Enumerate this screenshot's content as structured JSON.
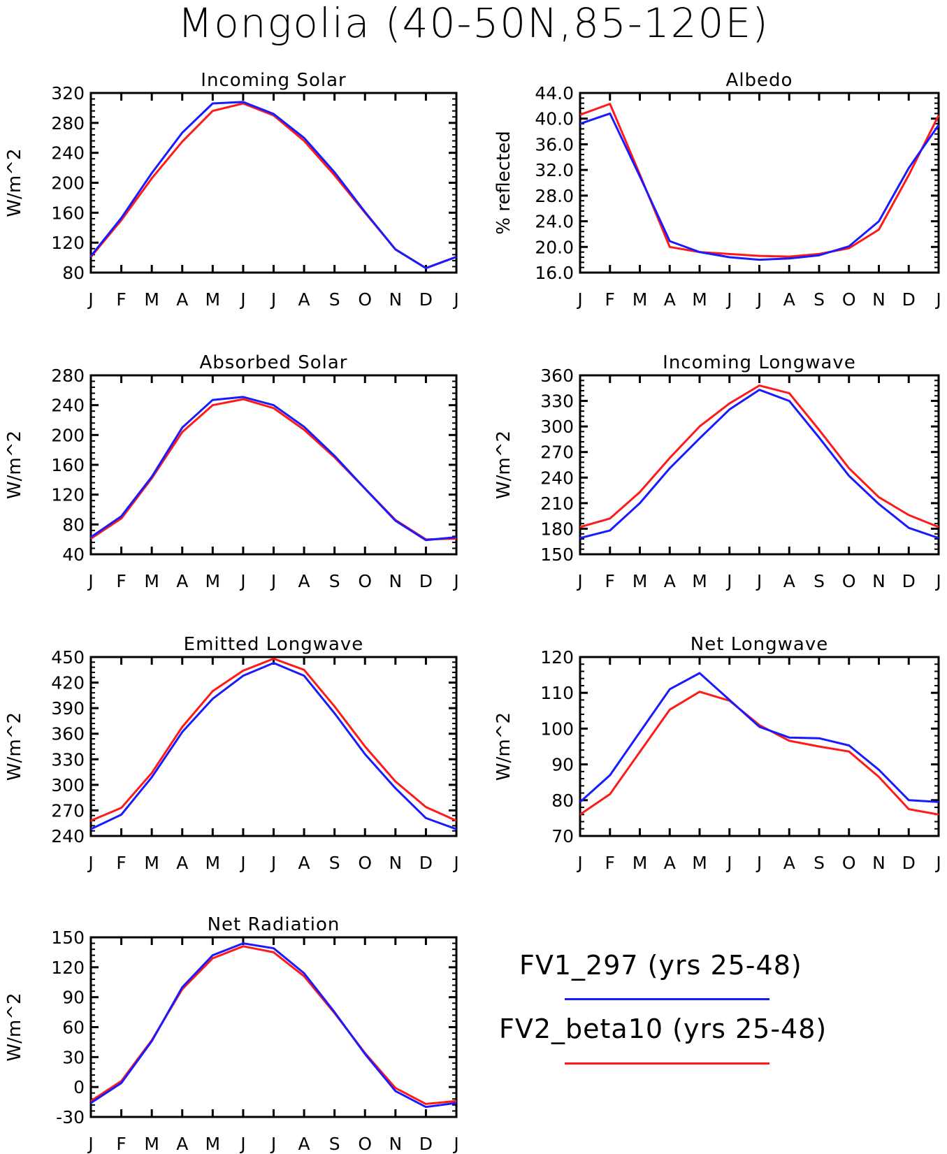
{
  "figure": {
    "title": "Mongolia (40-50N,85-120E)"
  },
  "legend": [
    {
      "name": "FV1_297 (yrs 25-48)",
      "color": "#1a1aff"
    },
    {
      "name": "FV2_beta10 (yrs 25-48)",
      "color": "#ff1a1a"
    }
  ],
  "chart_data": [
    {
      "type": "line",
      "title": "Incoming Solar",
      "ylabel": "W/m^2",
      "categories": [
        "J",
        "F",
        "M",
        "A",
        "M",
        "J",
        "J",
        "A",
        "S",
        "O",
        "N",
        "D",
        "J"
      ],
      "ylim": [
        80,
        320
      ],
      "yticks": [
        "80",
        "120",
        "160",
        "200",
        "240",
        "280",
        "320"
      ],
      "series": [
        {
          "name": "FV1_297 (yrs 25-48)",
          "color": "#1a1aff",
          "values": [
            102,
            153,
            213,
            267,
            306,
            308,
            292,
            260,
            214,
            161,
            111,
            86,
            101
          ]
        },
        {
          "name": "FV2_beta10 (yrs 25-48)",
          "color": "#ff1a1a",
          "values": [
            101,
            150,
            206,
            255,
            296,
            306,
            290,
            256,
            210,
            160,
            111,
            86,
            101
          ]
        }
      ]
    },
    {
      "type": "line",
      "title": "Albedo",
      "ylabel": "% reflected",
      "categories": [
        "J",
        "F",
        "M",
        "A",
        "M",
        "J",
        "J",
        "A",
        "S",
        "O",
        "N",
        "D",
        "J"
      ],
      "ylim": [
        16,
        44
      ],
      "yticks": [
        "16.0",
        "20.0",
        "24.0",
        "28.0",
        "32.0",
        "36.0",
        "40.0",
        "44.0"
      ],
      "series": [
        {
          "name": "FV1_297 (yrs 25-48)",
          "color": "#1a1aff",
          "values": [
            39.2,
            40.8,
            31.0,
            20.9,
            19.2,
            18.4,
            18.0,
            18.2,
            18.7,
            20.1,
            24.0,
            32.3,
            39.0
          ]
        },
        {
          "name": "FV2_beta10 (yrs 25-48)",
          "color": "#ff1a1a",
          "values": [
            40.6,
            42.3,
            31.3,
            20.0,
            19.2,
            18.9,
            18.6,
            18.5,
            18.9,
            19.8,
            22.7,
            31.2,
            40.5
          ]
        }
      ]
    },
    {
      "type": "line",
      "title": "Absorbed Solar",
      "ylabel": "W/m^2",
      "categories": [
        "J",
        "F",
        "M",
        "A",
        "M",
        "J",
        "J",
        "A",
        "S",
        "O",
        "N",
        "D",
        "J"
      ],
      "ylim": [
        40,
        280
      ],
      "yticks": [
        "40",
        "80",
        "120",
        "160",
        "200",
        "240",
        "280"
      ],
      "series": [
        {
          "name": "FV1_297 (yrs 25-48)",
          "color": "#1a1aff",
          "values": [
            63,
            91,
            144,
            210,
            247,
            251,
            240,
            211,
            172,
            128,
            85,
            59,
            63
          ]
        },
        {
          "name": "FV2_beta10 (yrs 25-48)",
          "color": "#ff1a1a",
          "values": [
            61,
            88,
            142,
            204,
            240,
            248,
            236,
            207,
            170,
            128,
            86,
            60,
            61
          ]
        }
      ]
    },
    {
      "type": "line",
      "title": "Incoming Longwave",
      "ylabel": "W/m^2",
      "categories": [
        "J",
        "F",
        "M",
        "A",
        "M",
        "J",
        "J",
        "A",
        "S",
        "O",
        "N",
        "D",
        "J"
      ],
      "ylim": [
        150,
        360
      ],
      "yticks": [
        "150",
        "180",
        "210",
        "240",
        "270",
        "300",
        "330",
        "360"
      ],
      "series": [
        {
          "name": "FV1_297 (yrs 25-48)",
          "color": "#1a1aff",
          "values": [
            169,
            178,
            210,
            251,
            286,
            320,
            343,
            330,
            287,
            242,
            209,
            181,
            169
          ]
        },
        {
          "name": "FV2_beta10 (yrs 25-48)",
          "color": "#ff1a1a",
          "values": [
            182,
            192,
            223,
            263,
            300,
            327,
            348,
            339,
            296,
            251,
            217,
            196,
            182
          ]
        }
      ]
    },
    {
      "type": "line",
      "title": "Emitted Longwave",
      "ylabel": "W/m^2",
      "categories": [
        "J",
        "F",
        "M",
        "A",
        "M",
        "J",
        "J",
        "A",
        "S",
        "O",
        "N",
        "D",
        "J"
      ],
      "ylim": [
        240,
        450
      ],
      "yticks": [
        "240",
        "270",
        "300",
        "330",
        "360",
        "390",
        "420",
        "450"
      ],
      "series": [
        {
          "name": "FV1_297 (yrs 25-48)",
          "color": "#1a1aff",
          "values": [
            248,
            265,
            309,
            362,
            401,
            428,
            443,
            428,
            384,
            336,
            296,
            261,
            248
          ]
        },
        {
          "name": "FV2_beta10 (yrs 25-48)",
          "color": "#ff1a1a",
          "values": [
            258,
            273,
            314,
            368,
            410,
            434,
            448,
            435,
            392,
            345,
            304,
            274,
            258
          ]
        }
      ]
    },
    {
      "type": "line",
      "title": "Net Longwave",
      "ylabel": "W/m^2",
      "categories": [
        "J",
        "F",
        "M",
        "A",
        "M",
        "J",
        "J",
        "A",
        "S",
        "O",
        "N",
        "D",
        "J"
      ],
      "ylim": [
        70,
        120
      ],
      "yticks": [
        "70",
        "80",
        "90",
        "100",
        "110",
        "120"
      ],
      "series": [
        {
          "name": "FV1_297 (yrs 25-48)",
          "color": "#1a1aff",
          "values": [
            79.5,
            87,
            99,
            111,
            115.5,
            108,
            100.5,
            97.5,
            97.3,
            95.3,
            88.5,
            80,
            79.5
          ]
        },
        {
          "name": "FV2_beta10 (yrs 25-48)",
          "color": "#ff1a1a",
          "values": [
            76,
            81.7,
            93.5,
            105.3,
            110.3,
            107.8,
            101,
            96.6,
            95,
            93.6,
            86.5,
            77.5,
            76
          ]
        }
      ]
    },
    {
      "type": "line",
      "title": "Net Radiation",
      "ylabel": "W/m^2",
      "categories": [
        "J",
        "F",
        "M",
        "A",
        "M",
        "J",
        "J",
        "A",
        "S",
        "O",
        "N",
        "D",
        "J"
      ],
      "ylim": [
        -30,
        150
      ],
      "yticks": [
        "-30",
        "0",
        "30",
        "60",
        "90",
        "120",
        "150"
      ],
      "series": [
        {
          "name": "FV1_297 (yrs 25-48)",
          "color": "#1a1aff",
          "values": [
            -16,
            4,
            46,
            100,
            132,
            144,
            139,
            114,
            75,
            33,
            -4,
            -20,
            -16
          ]
        },
        {
          "name": "FV2_beta10 (yrs 25-48)",
          "color": "#ff1a1a",
          "values": [
            -14,
            6,
            47,
            98,
            129,
            141,
            135,
            111,
            74,
            34,
            -1,
            -17,
            -14
          ]
        }
      ]
    }
  ]
}
